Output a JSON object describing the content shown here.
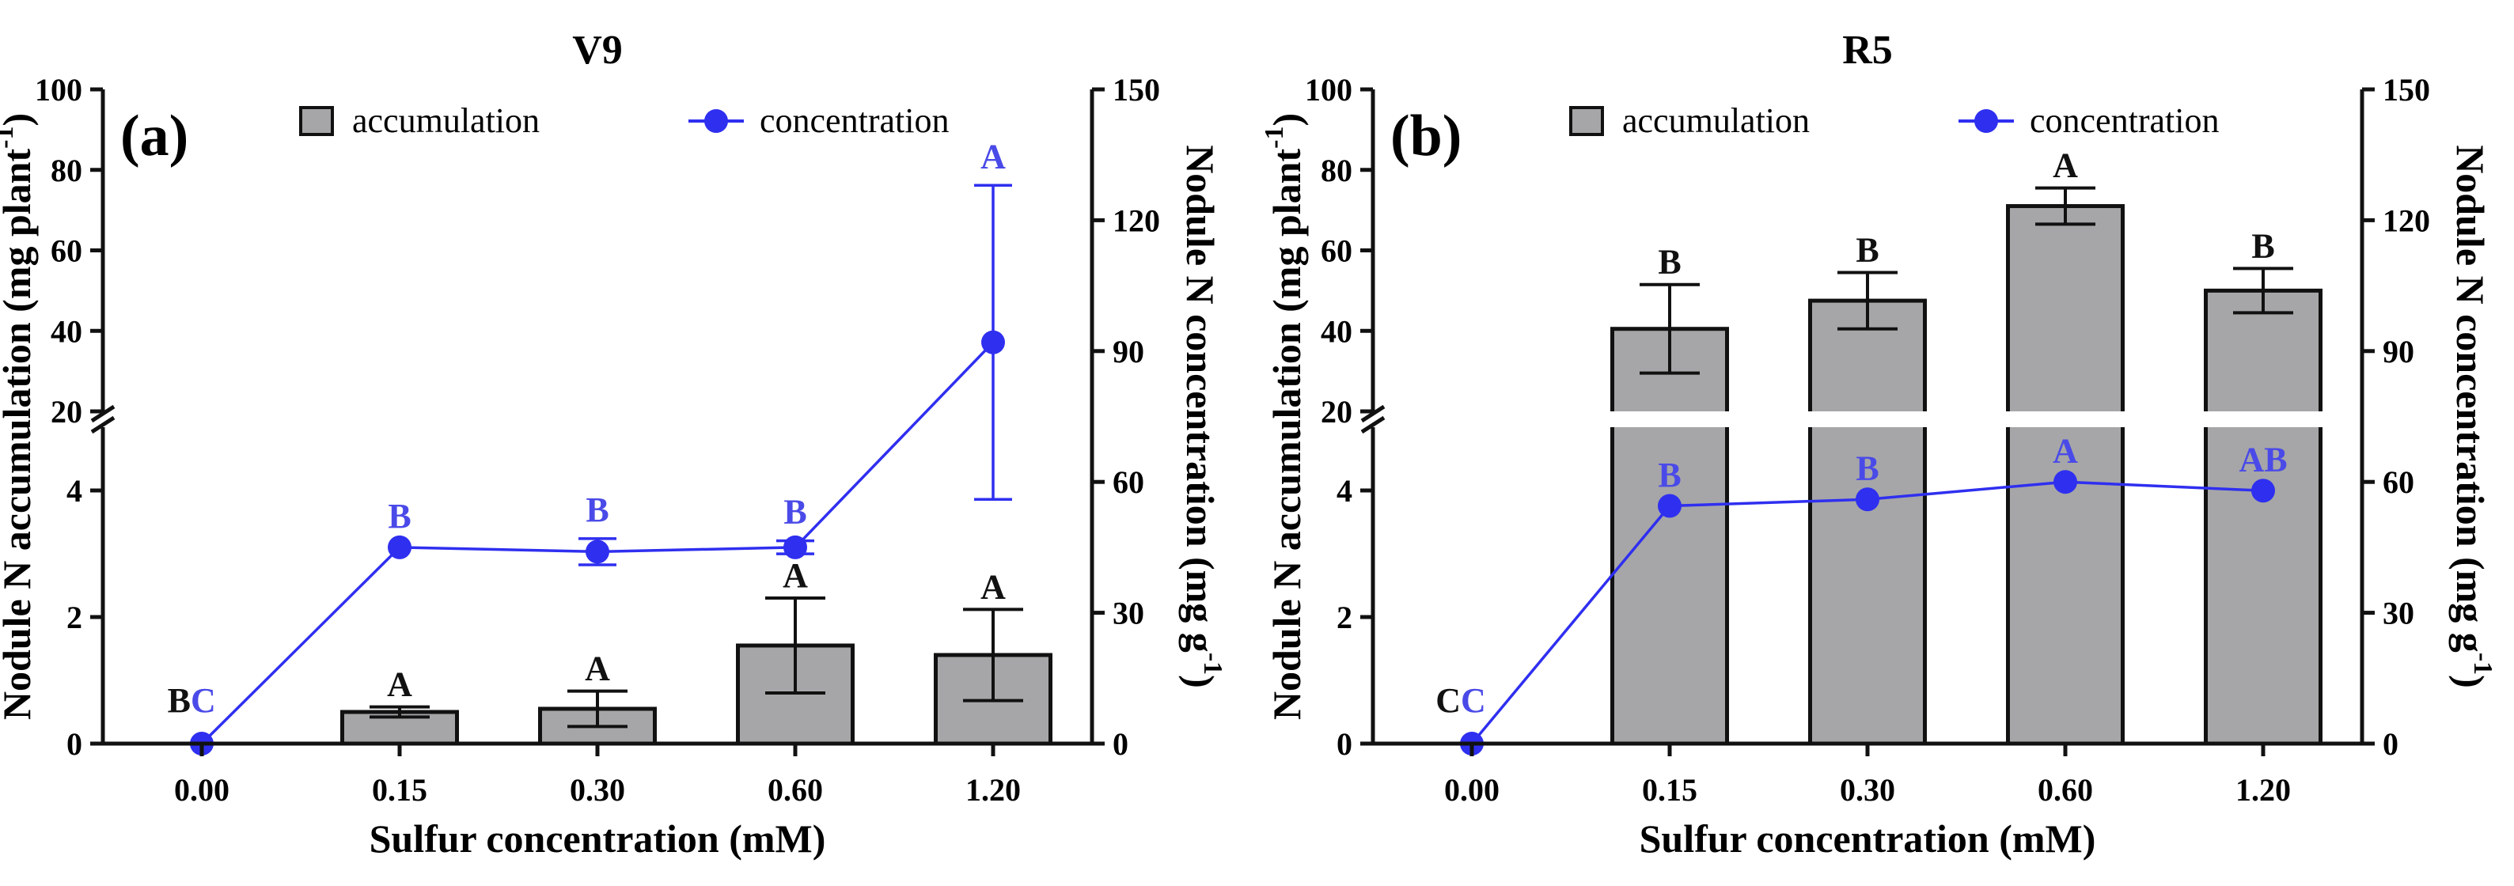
{
  "chart_data": [
    {
      "type": "bar+line",
      "panel_label": "(a)",
      "title": "V9",
      "xlabel": "Sulfur concentration (mM)",
      "ylabel_left": "Nodule N accumulation (mg plant",
      "ylabel_left_sup": "-1",
      "ylabel_left_close": ")",
      "ylabel_right": "Nodule N concentration (mg g",
      "ylabel_right_sup": "-1",
      "ylabel_right_close": ")",
      "categories": [
        "0.00",
        "0.15",
        "0.30",
        "0.60",
        "1.20"
      ],
      "legend": [
        "accumulation",
        "concentration"
      ],
      "left_axis": {
        "lower_range": [
          0,
          5
        ],
        "lower_ticks": [
          "0",
          "2",
          "4"
        ],
        "upper_range": [
          20,
          100
        ],
        "upper_ticks": [
          "20",
          "40",
          "60",
          "80",
          "100"
        ]
      },
      "right_axis": {
        "range": [
          0,
          150
        ],
        "ticks": [
          "0",
          "30",
          "60",
          "90",
          "120",
          "150"
        ]
      },
      "series": [
        {
          "name": "accumulation",
          "values": [
            0.0,
            0.5,
            0.55,
            1.55,
            1.4
          ],
          "errors": [
            0.0,
            0.08,
            0.28,
            0.75,
            0.72
          ],
          "letters": [
            "B",
            "A",
            "A",
            "A",
            "A"
          ]
        },
        {
          "name": "concentration",
          "values": [
            0.0,
            45.0,
            44.0,
            45.0,
            92.0
          ],
          "errors": [
            0.0,
            0.5,
            3.0,
            1.5,
            36.0
          ],
          "letters": [
            "C",
            "B",
            "B",
            "B",
            "A"
          ]
        }
      ],
      "colors": {
        "bar": "#a6a6a8",
        "line": "#2f2ff0",
        "letters_bar": "#111111",
        "letters_line": "#4a4ae8"
      }
    },
    {
      "type": "bar+line",
      "panel_label": "(b)",
      "title": "R5",
      "xlabel": "Sulfur concentration (mM)",
      "ylabel_left": "Nodule N accumulation (mg plant",
      "ylabel_left_sup": "-1",
      "ylabel_left_close": ")",
      "ylabel_right": "Nodule N concentration (mg g",
      "ylabel_right_sup": "-1",
      "ylabel_right_close": ")",
      "categories": [
        "0.00",
        "0.15",
        "0.30",
        "0.60",
        "1.20"
      ],
      "legend": [
        "accumulation",
        "concentration"
      ],
      "left_axis": {
        "lower_range": [
          0,
          5
        ],
        "lower_ticks": [
          "0",
          "2",
          "4"
        ],
        "upper_range": [
          20,
          100
        ],
        "upper_ticks": [
          "20",
          "40",
          "60",
          "80",
          "100"
        ]
      },
      "right_axis": {
        "range": [
          0,
          150
        ],
        "ticks": [
          "0",
          "30",
          "60",
          "90",
          "120",
          "150"
        ]
      },
      "series": [
        {
          "name": "accumulation",
          "values": [
            0.0,
            40.5,
            47.5,
            71.0,
            50.0
          ],
          "errors": [
            0.0,
            11.0,
            7.0,
            4.5,
            5.5
          ],
          "letters": [
            "C",
            "B",
            "B",
            "A",
            "B"
          ]
        },
        {
          "name": "concentration",
          "values": [
            0.0,
            54.5,
            56.0,
            60.0,
            58.0
          ],
          "errors": [
            0.0,
            0.5,
            0.5,
            0.5,
            0.5
          ],
          "letters": [
            "C",
            "B",
            "B",
            "A",
            "AB"
          ]
        }
      ],
      "colors": {
        "bar": "#a6a6a8",
        "line": "#2f2ff0",
        "letters_bar": "#111111",
        "letters_line": "#4a4ae8"
      }
    }
  ]
}
